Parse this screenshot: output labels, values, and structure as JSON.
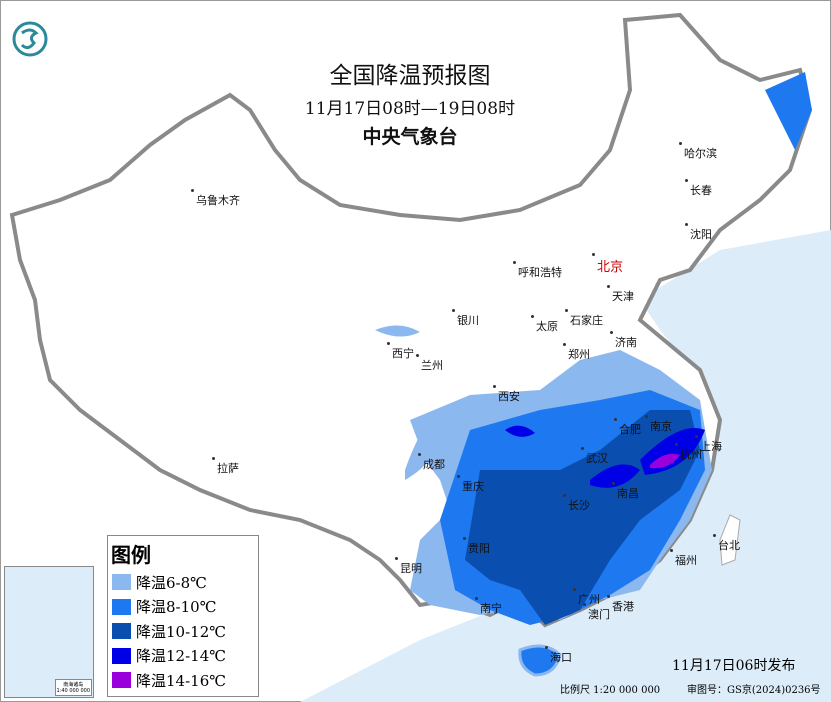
{
  "header": {
    "title": "全国降温预报图",
    "period": "11月17日08时—19日08时",
    "issuer": "中央气象台"
  },
  "legend": {
    "title": "图例",
    "items": [
      {
        "label": "降温6-8℃",
        "color": "#8cb8f0"
      },
      {
        "label": "降温8-10℃",
        "color": "#1e78f0"
      },
      {
        "label": "降温10-12℃",
        "color": "#0a4fb0"
      },
      {
        "label": "降温12-14℃",
        "color": "#0000e6"
      },
      {
        "label": "降温14-16℃",
        "color": "#9a00dc"
      }
    ]
  },
  "cities": [
    {
      "name": "乌鲁木齐"
    },
    {
      "name": "哈尔滨"
    },
    {
      "name": "长春"
    },
    {
      "name": "沈阳"
    },
    {
      "name": "呼和浩特"
    },
    {
      "name": "北京"
    },
    {
      "name": "天津"
    },
    {
      "name": "银川"
    },
    {
      "name": "太原"
    },
    {
      "name": "石家庄"
    },
    {
      "name": "济南"
    },
    {
      "name": "西宁"
    },
    {
      "name": "兰州"
    },
    {
      "name": "郑州"
    },
    {
      "name": "西安"
    },
    {
      "name": "合肥"
    },
    {
      "name": "南京"
    },
    {
      "name": "上海"
    },
    {
      "name": "杭州"
    },
    {
      "name": "成都"
    },
    {
      "name": "武汉"
    },
    {
      "name": "重庆"
    },
    {
      "name": "长沙"
    },
    {
      "name": "南昌"
    },
    {
      "name": "福州"
    },
    {
      "name": "台北"
    },
    {
      "name": "贵阳"
    },
    {
      "name": "昆明"
    },
    {
      "name": "南宁"
    },
    {
      "name": "广州"
    },
    {
      "name": "澳门"
    },
    {
      "name": "香港"
    },
    {
      "name": "海口"
    },
    {
      "name": "拉萨"
    }
  ],
  "inset": {
    "label": "南海诸岛",
    "scale": "1:40 000 000"
  },
  "footer": {
    "issued": "11月17日06时发布",
    "scale": "比例尺 1:20 000 000",
    "review_no": "审图号：GS京(2024)0236号"
  },
  "colors": {
    "sea": "#dcecf8",
    "land": "#ffffff",
    "border": "#8a8a8a",
    "capital": "#cc0000",
    "logo": "#2a8a9a"
  },
  "icons": {
    "logo": "cma-logo"
  }
}
